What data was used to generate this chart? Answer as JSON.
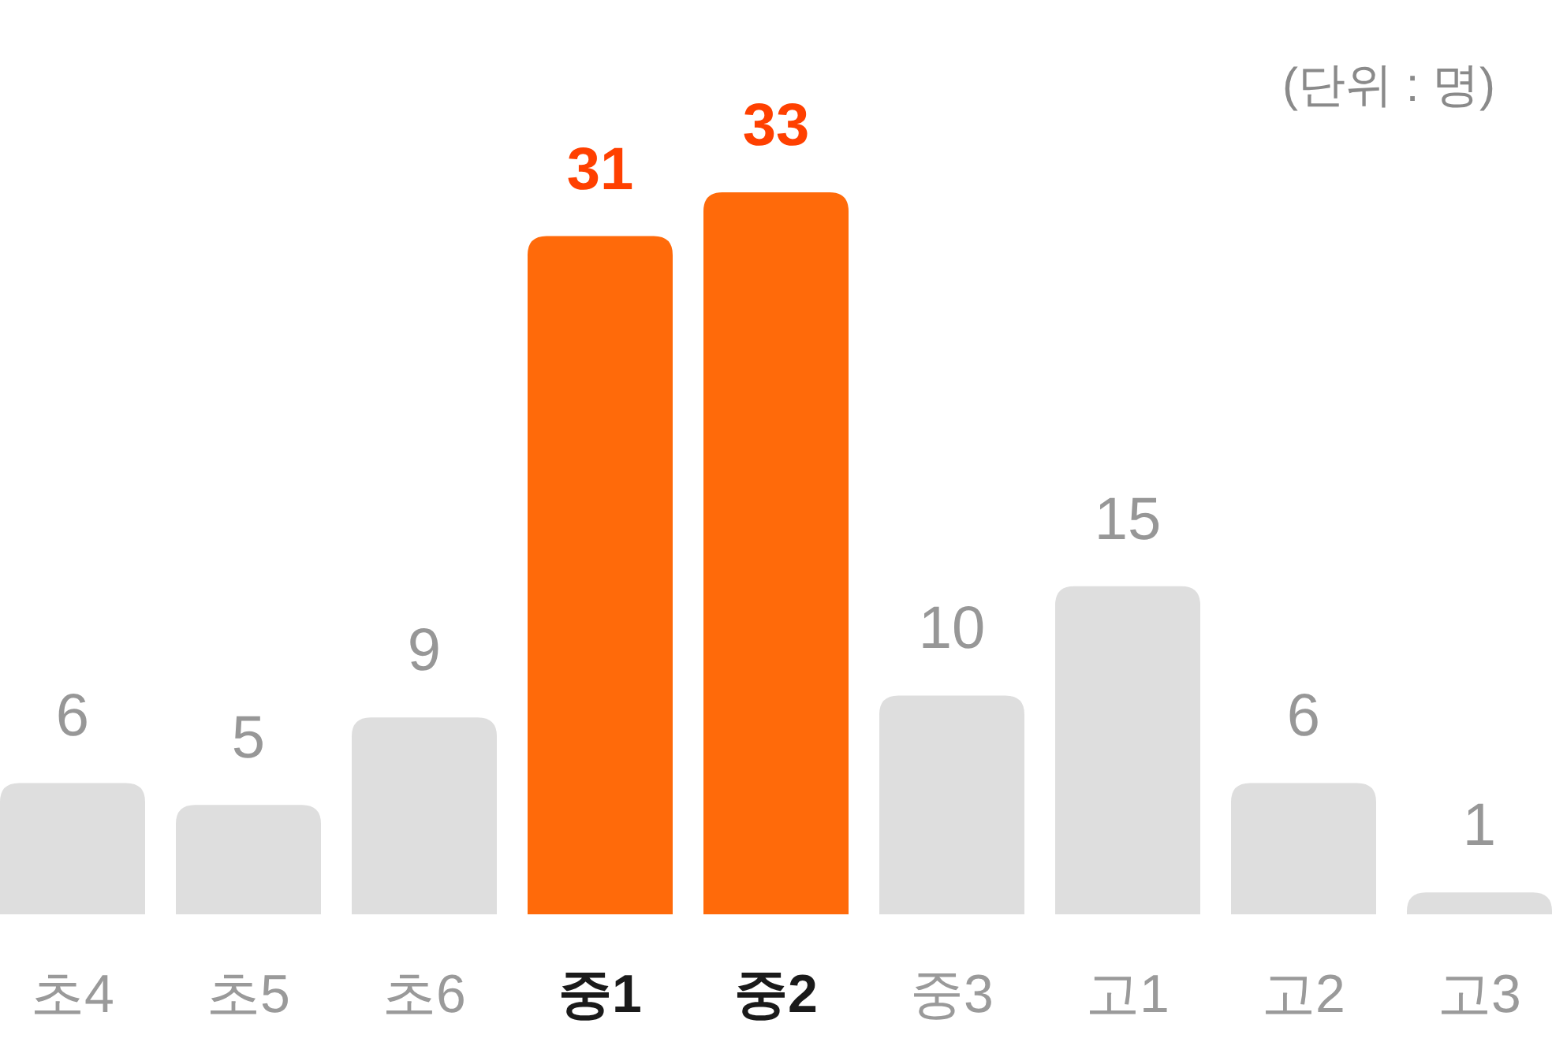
{
  "chart_data": {
    "type": "bar",
    "categories": [
      "초4",
      "초5",
      "초6",
      "중1",
      "중2",
      "중3",
      "고1",
      "고2",
      "고3"
    ],
    "values": [
      6,
      5,
      9,
      31,
      33,
      10,
      15,
      6,
      1
    ],
    "colors": [
      "#dedede",
      "#dedede",
      "#dedede",
      "#ff6a0a",
      "#ff6a0a",
      "#dedede",
      "#dedede",
      "#dedede",
      "#dedede"
    ],
    "data_labels": true,
    "annotations": [
      "(단위 : 명)"
    ]
  }
}
